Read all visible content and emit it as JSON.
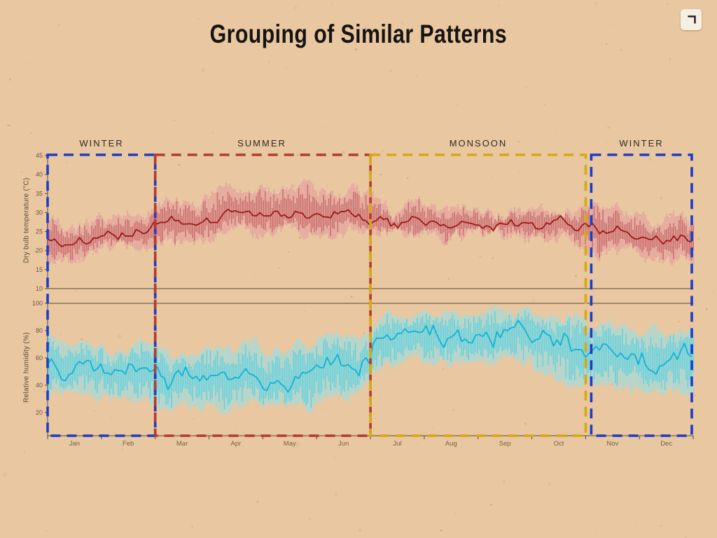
{
  "title": "Grouping of Similar Patterns",
  "background_color": "#e9c7a0",
  "corner_icon": "fullscreen-corner",
  "seasons": [
    {
      "label": "WINTER",
      "color": "#1d3cc9",
      "month_start": 0,
      "month_end": 2
    },
    {
      "label": "SUMMER",
      "color": "#b23b32",
      "month_start": 2,
      "month_end": 6
    },
    {
      "label": "MONSOON",
      "color": "#d4a915",
      "month_start": 6,
      "month_end": 10
    },
    {
      "label": "WINTER",
      "color": "#1d3cc9",
      "month_start": 10,
      "month_end": 12
    }
  ],
  "chart_data": {
    "type": "line",
    "title": "Grouping of Similar Patterns",
    "x_months": [
      "Jan",
      "Feb",
      "Mar",
      "Apr",
      "May",
      "Jun",
      "Jul",
      "Aug",
      "Sep",
      "Oct",
      "Nov",
      "Dec"
    ],
    "legend": "none",
    "temperature": {
      "ylabel": "Dry bulb temperature (°C)",
      "yticks": [
        45,
        40,
        35,
        30,
        25,
        20,
        15,
        10
      ],
      "ylim": [
        10,
        45
      ],
      "monthly_mean": [
        22.5,
        25,
        27.5,
        29.5,
        30,
        29,
        27.5,
        27,
        27,
        27,
        25.5,
        23
      ],
      "monthly_band_low": [
        18.5,
        20,
        22,
        24,
        25,
        24.5,
        24,
        24,
        23.5,
        22,
        19,
        16
      ],
      "monthly_band_high": [
        26.5,
        30,
        33,
        35.5,
        36.5,
        35,
        31.5,
        31,
        31,
        31,
        30,
        28
      ],
      "line_color": "#9e1a1a",
      "band_color": "#e4939f",
      "bar_color": "#b84a55"
    },
    "humidity": {
      "ylabel": "Relative humidity (%)",
      "yticks": [
        100,
        80,
        60,
        40,
        20
      ],
      "ylim": [
        0,
        100
      ],
      "monthly_mean": [
        55,
        50,
        43,
        45,
        45,
        53,
        75,
        78,
        78,
        72,
        60,
        57
      ],
      "monthly_band_low": [
        36,
        30,
        24,
        22,
        24,
        31,
        56,
        58,
        56,
        46,
        36,
        35
      ],
      "monthly_band_high": [
        73,
        70,
        64,
        68,
        68,
        77,
        92,
        93,
        92,
        90,
        82,
        80
      ],
      "line_color": "#12b3d6",
      "band_color": "#86e4f4",
      "bar_color": "#2fd0ef"
    }
  }
}
